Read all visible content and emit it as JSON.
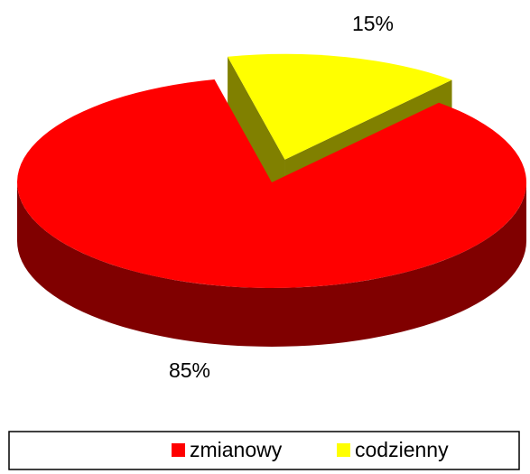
{
  "chart_data": {
    "type": "pie3d",
    "categories": [
      "zmianowy",
      "codzienny"
    ],
    "values": [
      85,
      15
    ],
    "value_labels": [
      "85%",
      "15%"
    ],
    "colors": [
      "#ff0000",
      "#ffff00"
    ],
    "side_colors": [
      "#800000",
      "#808000"
    ],
    "exploded": [
      false,
      true
    ],
    "legend": "bottom"
  }
}
